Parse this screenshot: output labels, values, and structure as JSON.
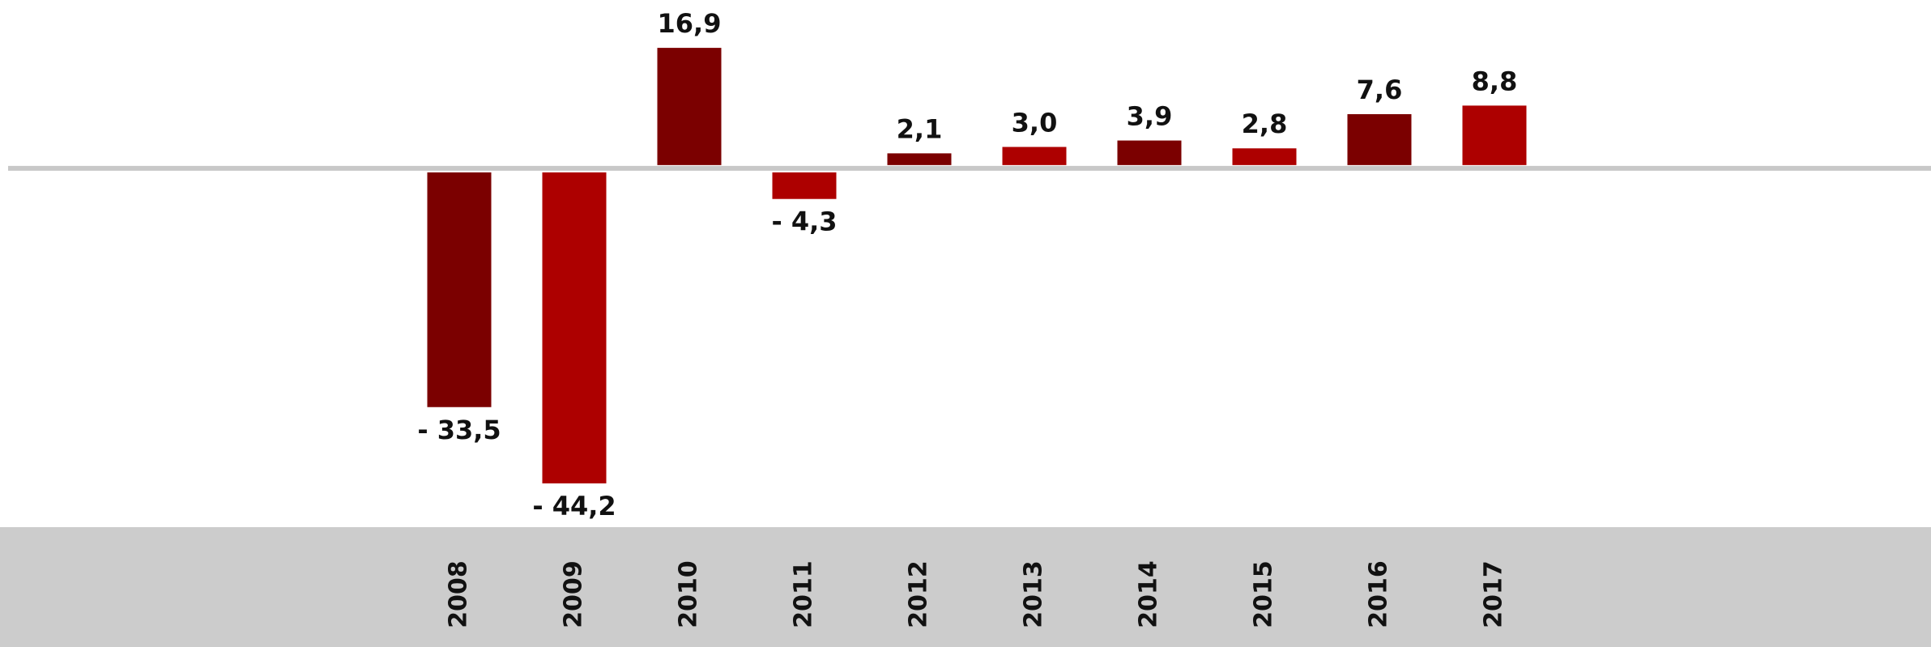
{
  "chart_data": {
    "type": "bar",
    "categories": [
      "2008",
      "2009",
      "2010",
      "2011",
      "2012",
      "2013",
      "2014",
      "2015",
      "2016",
      "2017"
    ],
    "values": [
      -33.5,
      -44.2,
      16.9,
      -4.3,
      2.1,
      3.0,
      3.9,
      2.8,
      7.6,
      8.8
    ],
    "value_labels": [
      "- 33,5",
      "- 44,2",
      "16,9",
      "- 4,3",
      "2,1",
      "3,0",
      "3,9",
      "2,8",
      "7,6",
      "8,8"
    ],
    "colors": [
      "#7b0000",
      "#ad0000",
      "#7b0000",
      "#ad0000",
      "#7b0000",
      "#ad0000",
      "#7b0000",
      "#ad0000",
      "#7b0000",
      "#ad0000"
    ],
    "ylim": [
      -50,
      23.5
    ]
  }
}
